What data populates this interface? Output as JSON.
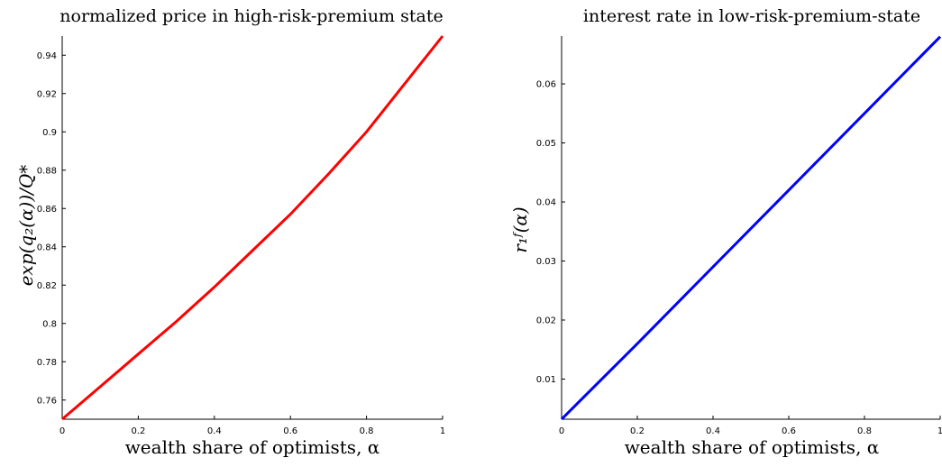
{
  "chart_data": [
    {
      "type": "line",
      "title": "normalized price in high-risk-premium state",
      "xlabel": "wealth share of optimists, α",
      "ylabel": "exp(q₂(α))/Q*",
      "xlim": [
        0,
        1
      ],
      "ylim": [
        0.75,
        0.95
      ],
      "xticks": [
        "0",
        "0.2",
        "0.4",
        "0.6",
        "0.8",
        "1"
      ],
      "yticks": [
        "0.76",
        "0.78",
        "0.8",
        "0.82",
        "0.84",
        "0.86",
        "0.88",
        "0.9",
        "0.92",
        "0.94"
      ],
      "grid": false,
      "series": [
        {
          "color": "#ff0000",
          "x": [
            0,
            0.1,
            0.2,
            0.3,
            0.4,
            0.5,
            0.6,
            0.7,
            0.8,
            0.9,
            1.0
          ],
          "y": [
            0.75,
            0.767,
            0.784,
            0.801,
            0.819,
            0.838,
            0.857,
            0.878,
            0.9,
            0.925,
            0.95
          ]
        }
      ]
    },
    {
      "type": "line",
      "title": "interest rate in low-risk-premium-state",
      "xlabel": "wealth share of optimists, α",
      "ylabel": "r₁ᶠ(α)",
      "xlim": [
        0,
        1
      ],
      "ylim": [
        0.0032,
        0.0681
      ],
      "xticks": [
        "0",
        "0.2",
        "0.4",
        "0.6",
        "0.8",
        "1"
      ],
      "yticks": [
        "0.01",
        "0.02",
        "0.03",
        "0.04",
        "0.05",
        "0.06"
      ],
      "grid": false,
      "series": [
        {
          "color": "#0000ff",
          "x": [
            0,
            0.2,
            0.4,
            0.6,
            0.8,
            1.0
          ],
          "y": [
            0.0032,
            0.016,
            0.029,
            0.042,
            0.055,
            0.068
          ]
        }
      ]
    }
  ]
}
